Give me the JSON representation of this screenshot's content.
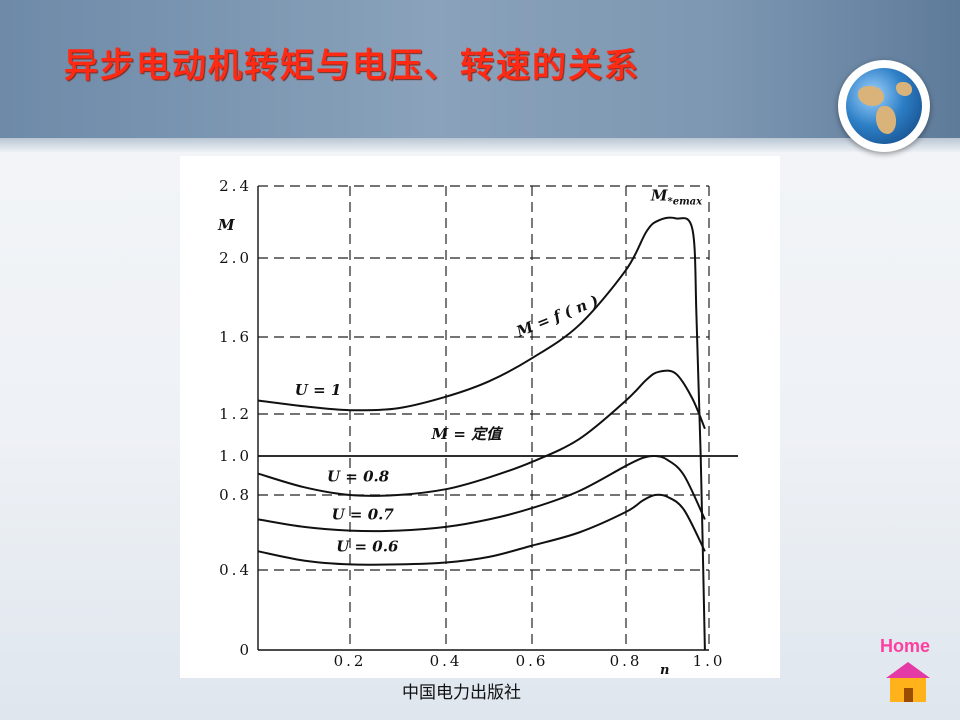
{
  "slide": {
    "title": "异步电动机转矩与电压、转速的关系",
    "publisher": "中国电力出版社",
    "home_label": "Home"
  },
  "colors": {
    "title": "#ff2a14",
    "banner": "#7d97b2",
    "home_label": "#ff3fa0"
  },
  "chart_data": {
    "type": "line",
    "title": "",
    "xlabel": "n",
    "ylabel": "M",
    "xlim": [
      0,
      1.0
    ],
    "ylim": [
      0,
      2.4
    ],
    "x_ticks": [
      {
        "value": 0.2,
        "label": "0.2"
      },
      {
        "value": 0.4,
        "label": "0.4"
      },
      {
        "value": 0.6,
        "label": "0.6"
      },
      {
        "value": 0.8,
        "label": "0.8"
      },
      {
        "value": 1.0,
        "label": "1.0"
      }
    ],
    "y_ticks": [
      {
        "value": 0,
        "label": "0"
      },
      {
        "value": 0.4,
        "label": "0.4"
      },
      {
        "value": 0.8,
        "label": "0.8"
      },
      {
        "value": 1.0,
        "label": "1.0"
      },
      {
        "value": 1.2,
        "label": "1.2"
      },
      {
        "value": 1.6,
        "label": "1.6"
      },
      {
        "value": 2.0,
        "label": "2.0"
      },
      {
        "value": 2.4,
        "label": "2.4"
      }
    ],
    "grid": "dashed",
    "series": [
      {
        "name": "U = 1",
        "x": [
          0,
          0.1,
          0.2,
          0.3,
          0.4,
          0.5,
          0.6,
          0.7,
          0.8,
          0.85,
          0.88,
          0.92,
          0.96,
          0.97,
          0.98,
          0.99
        ],
        "y": [
          1.27,
          1.24,
          1.22,
          1.23,
          1.29,
          1.37,
          1.49,
          1.66,
          1.94,
          2.15,
          2.21,
          2.22,
          2.16,
          1.7,
          1.0,
          0.0
        ]
      },
      {
        "name": "U = 0.8",
        "x": [
          0,
          0.1,
          0.2,
          0.3,
          0.4,
          0.5,
          0.6,
          0.7,
          0.8,
          0.85,
          0.88,
          0.92,
          0.96,
          0.99
        ],
        "y": [
          0.91,
          0.84,
          0.8,
          0.8,
          0.83,
          0.89,
          0.97,
          1.08,
          1.27,
          1.38,
          1.42,
          1.41,
          1.28,
          1.13
        ]
      },
      {
        "name": "U = 0.7",
        "x": [
          0,
          0.1,
          0.2,
          0.3,
          0.4,
          0.5,
          0.6,
          0.7,
          0.8,
          0.84,
          0.87,
          0.9,
          0.94,
          0.99
        ],
        "y": [
          0.67,
          0.63,
          0.61,
          0.61,
          0.63,
          0.67,
          0.73,
          0.82,
          0.95,
          0.99,
          1.0,
          0.98,
          0.9,
          0.67
        ]
      },
      {
        "name": "U = 0.6",
        "x": [
          0,
          0.1,
          0.2,
          0.3,
          0.4,
          0.5,
          0.6,
          0.7,
          0.8,
          0.84,
          0.87,
          0.9,
          0.94,
          0.99
        ],
        "y": [
          0.5,
          0.45,
          0.43,
          0.43,
          0.44,
          0.47,
          0.53,
          0.6,
          0.71,
          0.77,
          0.8,
          0.79,
          0.72,
          0.5
        ]
      }
    ],
    "reference_line": {
      "label": "M = 定值",
      "y": 1.0
    },
    "annotations": [
      {
        "text": "M",
        "sub": "*emax",
        "x": 0.86,
        "y": 2.32
      },
      {
        "text": "M = f ( n )",
        "x": 0.57,
        "y": 1.6,
        "angle": -22
      },
      {
        "text": "U = 1",
        "x": 0.08,
        "y": 1.3
      },
      {
        "text": "M = 定值",
        "x": 0.37,
        "y": 1.08
      },
      {
        "text": "U = 0.8",
        "x": 0.15,
        "y": 0.87
      },
      {
        "text": "U = 0.7",
        "x": 0.16,
        "y": 0.67
      },
      {
        "text": "U = 0.6",
        "x": 0.17,
        "y": 0.5
      }
    ]
  }
}
